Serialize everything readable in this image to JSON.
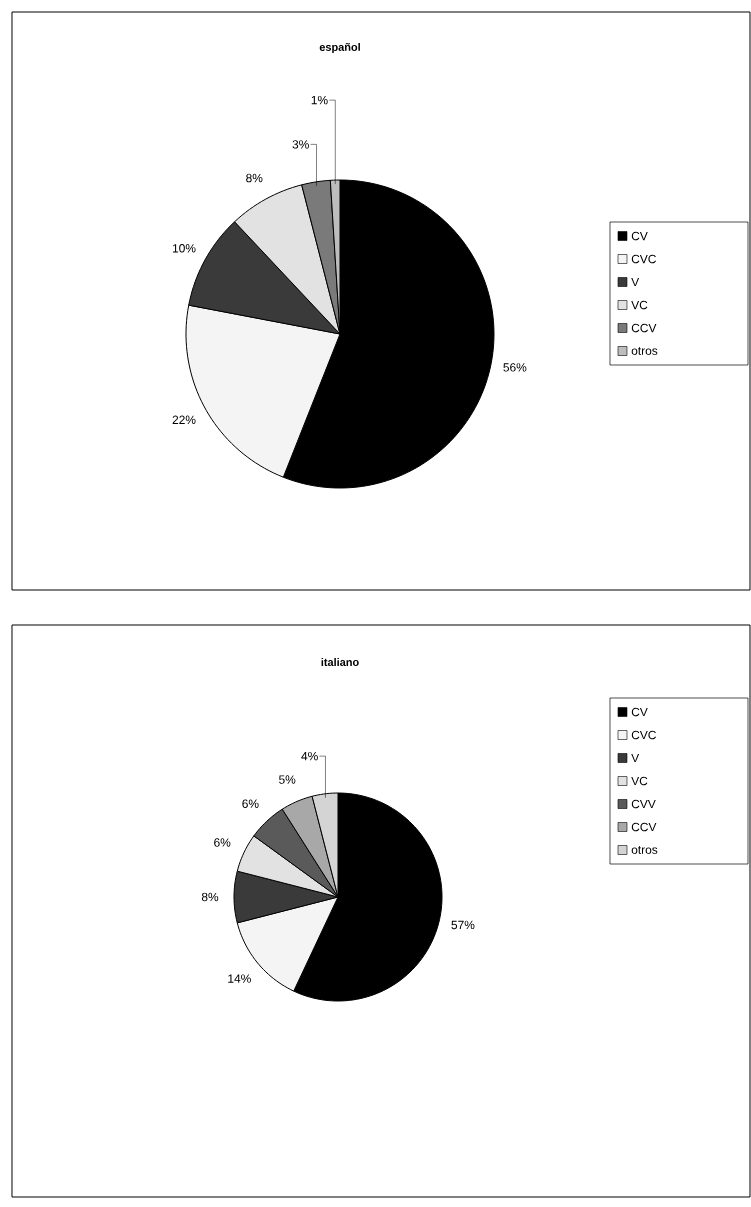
{
  "chart_data": [
    {
      "type": "pie",
      "title": "español",
      "categories": [
        "CV",
        "CVC",
        "V",
        "VC",
        "CCV",
        "otros"
      ],
      "values": [
        56,
        22,
        10,
        8,
        3,
        1
      ],
      "value_labels": [
        "56%",
        "22%",
        "10%",
        "8%",
        "3%",
        "1%"
      ],
      "colors": [
        "#000000",
        "#f4f4f4",
        "#3a3a3a",
        "#e2e2e2",
        "#7a7a7a",
        "#bdbdbd"
      ],
      "legend": "right"
    },
    {
      "type": "pie",
      "title": "italiano",
      "categories": [
        "CV",
        "CVC",
        "V",
        "VC",
        "CVV",
        "CCV",
        "otros"
      ],
      "values": [
        57,
        14,
        8,
        6,
        6,
        5,
        4
      ],
      "value_labels": [
        "57%",
        "14%",
        "8%",
        "6%",
        "6%",
        "5%",
        "4%"
      ],
      "colors": [
        "#000000",
        "#f4f4f4",
        "#3a3a3a",
        "#e2e2e2",
        "#5a5a5a",
        "#a8a8a8",
        "#d4d4d4"
      ],
      "legend": "right"
    }
  ]
}
